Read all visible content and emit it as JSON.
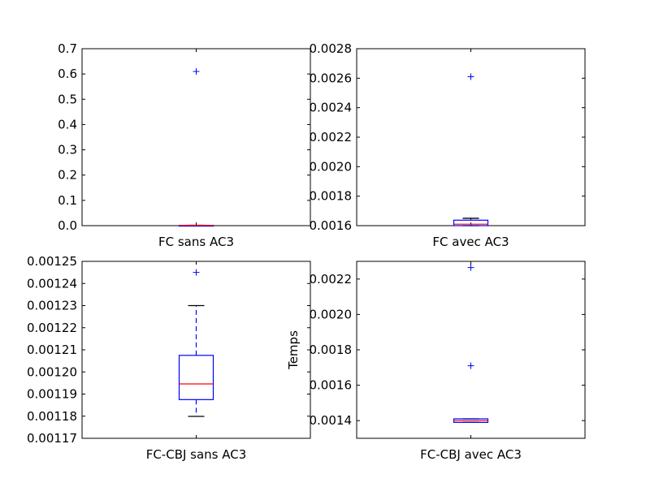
{
  "colors": {
    "box": "#0000ff",
    "median": "#ff0000",
    "cap": "#000000",
    "frame": "#000000",
    "background": "#ffffff"
  },
  "chart_data": [
    {
      "type": "box",
      "category": "FC sans AC3",
      "ylabel": "",
      "ylim": [
        0,
        0.7
      ],
      "yticks": [
        0.0,
        0.1,
        0.2,
        0.3,
        0.4,
        0.5,
        0.6,
        0.7
      ],
      "ytick_labels": [
        "0.0",
        "0.1",
        "0.2",
        "0.3",
        "0.4",
        "0.5",
        "0.6",
        "0.7"
      ],
      "box": {
        "whisker_low": 0.0008,
        "q1": 0.001,
        "median": 0.0012,
        "q3": 0.0014,
        "whisker_high": 0.0016
      },
      "outliers": [
        0.61
      ],
      "grid": false
    },
    {
      "type": "box",
      "category": "FC avec AC3",
      "ylabel": "",
      "ylim": [
        0.0016,
        0.0028
      ],
      "yticks": [
        0.0016,
        0.0018,
        0.002,
        0.0022,
        0.0024,
        0.0026,
        0.0028
      ],
      "ytick_labels": [
        "0.0016",
        "0.0018",
        "0.0020",
        "0.0022",
        "0.0024",
        "0.0026",
        "0.0028"
      ],
      "box": {
        "whisker_low": 0.0016,
        "q1": 0.0016,
        "median": 0.00161,
        "q3": 0.001637,
        "whisker_high": 0.00165
      },
      "outliers": [
        0.00261
      ],
      "grid": false
    },
    {
      "type": "box",
      "category": "FC-CBJ sans AC3",
      "ylabel": "",
      "ylim": [
        0.00117,
        0.00125
      ],
      "yticks": [
        0.00117,
        0.00118,
        0.00119,
        0.0012,
        0.00121,
        0.00122,
        0.00123,
        0.00124,
        0.00125
      ],
      "ytick_labels": [
        "0.00117",
        "0.00118",
        "0.00119",
        "0.00120",
        "0.00121",
        "0.00122",
        "0.00123",
        "0.00124",
        "0.00125"
      ],
      "box": {
        "whisker_low": 0.0011799,
        "q1": 0.0011875,
        "median": 0.0011946,
        "q3": 0.0012075,
        "whisker_high": 0.00123
      },
      "outliers": [
        0.001245
      ],
      "grid": false
    },
    {
      "type": "box",
      "category": "FC-CBJ avec AC3",
      "ylabel": "Temps",
      "ylim": [
        0.0013,
        0.0023
      ],
      "yticks": [
        0.0014,
        0.0016,
        0.0018,
        0.002,
        0.0022
      ],
      "ytick_labels": [
        "0.0014",
        "0.0016",
        "0.0018",
        "0.0020",
        "0.0022"
      ],
      "box": {
        "whisker_low": 0.00139,
        "q1": 0.00139,
        "median": 0.0014,
        "q3": 0.00141,
        "whisker_high": 0.00141
      },
      "outliers": [
        0.00171,
        0.002265
      ],
      "grid": false
    }
  ]
}
